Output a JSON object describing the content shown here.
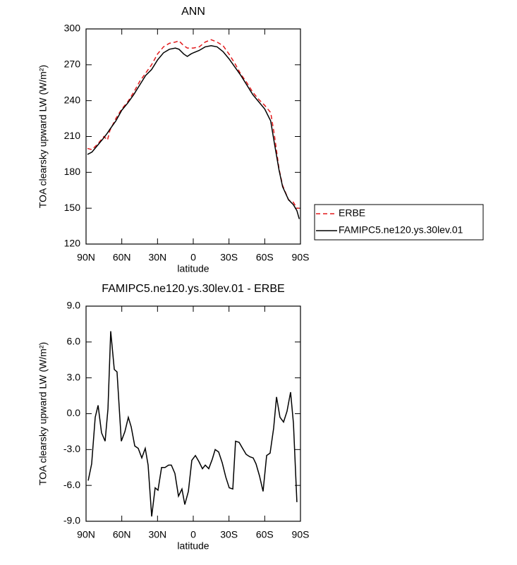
{
  "chart_data": [
    {
      "type": "line",
      "title": "ANN",
      "x_label": "latitude",
      "y_label": "TOA clearsky upward LW (W/m²)",
      "x": [
        88.8,
        85,
        80,
        75,
        72,
        70,
        65,
        60,
        55,
        50,
        45,
        40,
        35,
        30,
        25,
        20,
        15,
        12,
        8,
        5,
        2,
        0,
        -5,
        -10,
        -15,
        -20,
        -25,
        -30,
        -35,
        -40,
        -45,
        -50,
        -55,
        -60,
        -65,
        -68,
        -72,
        -75,
        -80,
        -84,
        -87,
        -89
      ],
      "series": [
        {
          "name": "ERBE",
          "color": "#e31a1c",
          "line_style": "dashed",
          "values": [
            200,
            199,
            204,
            210,
            207,
            215,
            225,
            233,
            239,
            247,
            256,
            263,
            270,
            279,
            285,
            288,
            289,
            290,
            286,
            284,
            284,
            284,
            285,
            289,
            291,
            289,
            286,
            279,
            271,
            262,
            255,
            247,
            241,
            236,
            230,
            212,
            183,
            169,
            157,
            155,
            150,
            150
          ]
        },
        {
          "name": "FAMIPC5.ne120.ys.30lev.01",
          "color": "#000000",
          "line_style": "solid",
          "values": [
            195,
            197,
            203,
            209,
            213,
            216,
            223,
            232,
            238,
            245,
            253,
            261,
            266,
            274,
            280,
            283,
            284,
            283,
            279,
            277,
            279,
            280,
            282,
            285,
            286,
            285,
            281,
            275,
            268,
            261,
            253,
            245,
            239,
            233,
            223,
            205,
            182,
            168,
            157,
            153,
            148,
            141
          ]
        }
      ],
      "xlim": [
        90,
        -90
      ],
      "xticks": [
        {
          "value": 90,
          "label": "90N"
        },
        {
          "value": 60,
          "label": "60N"
        },
        {
          "value": 30,
          "label": "30N"
        },
        0,
        {
          "value": -30,
          "label": "30S"
        },
        {
          "value": -60,
          "label": "60S"
        },
        {
          "value": -90,
          "label": "90S"
        }
      ],
      "ylim": [
        120,
        300
      ],
      "yticks": [
        120,
        150,
        180,
        210,
        240,
        270,
        300
      ],
      "legend": "outside right"
    },
    {
      "type": "line",
      "title": "FAMIPC5.ne120.ys.30lev.01 - ERBE",
      "x_label": "latitude",
      "y_label": "TOA clearsky upward LW (W/m²)",
      "x": [
        88.2,
        85.3,
        82.3,
        79.9,
        77,
        74,
        71.6,
        69.3,
        66.3,
        64,
        60.4,
        57.4,
        54.5,
        52.1,
        49.1,
        46.2,
        43.2,
        40.3,
        37.9,
        34.9,
        32,
        29.6,
        26.6,
        23.7,
        20.7,
        18.4,
        15.4,
        12.4,
        9.5,
        7.1,
        4.1,
        1.2,
        -1.8,
        -4.7,
        -7.7,
        -10.1,
        -13,
        -16,
        -18.4,
        -21.3,
        -24.3,
        -27.3,
        -30.2,
        -33.2,
        -35.5,
        -38.5,
        -41.4,
        -44.4,
        -47.4,
        -50.3,
        -52.7,
        -55.6,
        -58.6,
        -61.6,
        -64.5,
        -67.5,
        -69.9,
        -72.8,
        -75.8,
        -78.7,
        -81.7,
        -84.1,
        -87
      ],
      "series": [
        {
          "name": "FAMIPC5.ne120.ys.30lev.01 - ERBE",
          "color": "#000000",
          "line_style": "solid",
          "values": [
            -5.6,
            -4.2,
            -0.3,
            0.7,
            -1.6,
            -2.3,
            0.4,
            6.9,
            3.7,
            3.5,
            -2.3,
            -1.5,
            -0.3,
            -1.1,
            -2.7,
            -2.9,
            -3.7,
            -2.9,
            -4.3,
            -8.6,
            -6.2,
            -6.4,
            -4.5,
            -4.5,
            -4.3,
            -4.3,
            -5.0,
            -6.9,
            -6.3,
            -7.6,
            -6.5,
            -3.9,
            -3.5,
            -4.0,
            -4.6,
            -4.3,
            -4.6,
            -3.8,
            -3.0,
            -3.2,
            -4.1,
            -5.3,
            -6.2,
            -6.3,
            -2.3,
            -2.4,
            -2.9,
            -3.4,
            -3.6,
            -3.7,
            -4.2,
            -5.2,
            -6.5,
            -3.5,
            -3.3,
            -1.2,
            1.4,
            -0.3,
            -0.7,
            0.2,
            1.8,
            -0.8,
            -7.4
          ]
        }
      ],
      "xlim": [
        90,
        -90
      ],
      "xticks": [
        {
          "value": 90,
          "label": "90N"
        },
        {
          "value": 60,
          "label": "60N"
        },
        {
          "value": 30,
          "label": "30N"
        },
        0,
        {
          "value": -30,
          "label": "30S"
        },
        {
          "value": -60,
          "label": "60S"
        },
        {
          "value": -90,
          "label": "90S"
        }
      ],
      "ylim": [
        -9,
        9
      ],
      "yticks": [
        {
          "value": -9,
          "label": "-9.0"
        },
        {
          "value": -6,
          "label": "-6.0"
        },
        {
          "value": -3,
          "label": "-3.0"
        },
        {
          "value": 0,
          "label": "0.0"
        },
        {
          "value": 3,
          "label": "3.0"
        },
        {
          "value": 6,
          "label": "6.0"
        },
        {
          "value": 9,
          "label": "9.0"
        }
      ],
      "legend": null
    }
  ]
}
